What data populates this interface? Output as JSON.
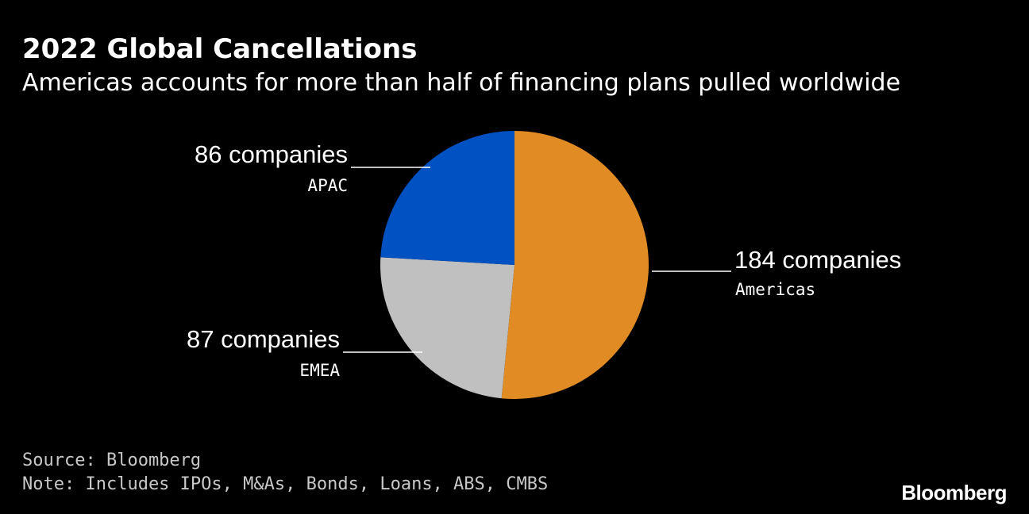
{
  "header": {
    "title": "2022 Global Cancellations",
    "subtitle": "Americas accounts for more than half of financing plans pulled worldwide"
  },
  "footer": {
    "source": "Source: Bloomberg",
    "note": "Note: Includes IPOs, M&As, Bonds, Loans, ABS, CMBS"
  },
  "brand": {
    "logo_text": "Bloomberg"
  },
  "chart_data": {
    "type": "pie",
    "title": "2022 Global Cancellations",
    "subtitle": "Americas accounts for more than half of financing plans pulled worldwide",
    "start": "12 o'clock",
    "direction": "clockwise",
    "slices": [
      {
        "name": "Americas",
        "value": 184,
        "label": "184 companies",
        "color": "#e08b24",
        "label_side": "right"
      },
      {
        "name": "EMEA",
        "value": 87,
        "label": "87 companies",
        "color": "#c0c0c0",
        "label_side": "left"
      },
      {
        "name": "APAC",
        "value": 86,
        "label": "86 companies",
        "color": "#0051c2",
        "label_side": "left"
      }
    ],
    "label_text_color": "#ffffff",
    "background": "#000000"
  }
}
